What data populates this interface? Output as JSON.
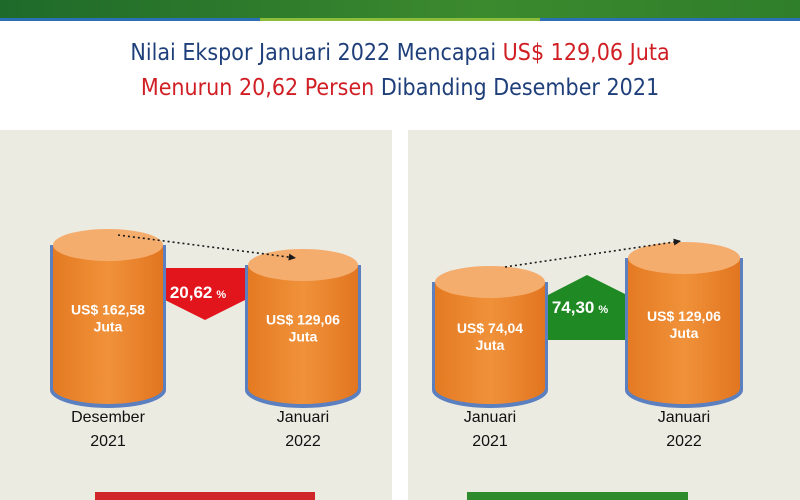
{
  "header": {
    "line1": [
      "Nilai Ekspor Januari 2022 Mencapai ",
      "US$ 129,06 Juta"
    ],
    "line2": [
      "Menurun 20,62 Persen",
      " Dibanding Desember 2021"
    ]
  },
  "panels": [
    {
      "cylinders": [
        {
          "value": "US$ 162,58",
          "unit": "Juta",
          "caption": [
            "Desember",
            "2021"
          ]
        },
        {
          "value": "US$ 129,06",
          "unit": "Juta",
          "caption": [
            "Januari",
            "2022"
          ]
        }
      ],
      "badge": {
        "value": "20,62",
        "unit": "%"
      }
    },
    {
      "cylinders": [
        {
          "value": "US$ 74,04",
          "unit": "Juta",
          "caption": [
            "Januari",
            "2021"
          ]
        },
        {
          "value": "US$ 129,06",
          "unit": "Juta",
          "caption": [
            "Januari",
            "2022"
          ]
        }
      ],
      "badge": {
        "value": "74,30",
        "unit": "%"
      }
    }
  ]
}
